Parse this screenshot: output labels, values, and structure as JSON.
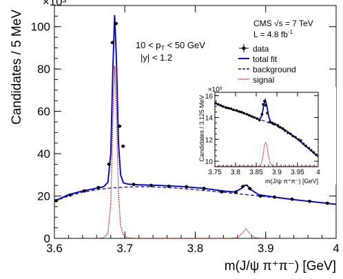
{
  "chart_data": [
    {
      "type": "scatter",
      "xlabel": "m(J/ψ π⁺π⁻) [GeV]",
      "ylabel": "Candidates / 5 MeV",
      "xlim": [
        3.6,
        4.0
      ],
      "ylim": [
        0,
        110
      ],
      "y_multiplier": "×10³",
      "xticks": [
        3.6,
        3.7,
        3.8,
        3.9,
        4.0
      ],
      "xtick_labels": [
        "3.6",
        "3.7",
        "3.8",
        "3.9",
        "4"
      ],
      "yticks": [
        0,
        20,
        40,
        60,
        80,
        100
      ],
      "yticks_labels": [
        "0",
        "20",
        "40",
        "60",
        "80",
        "100"
      ],
      "annotations": {
        "pt_cut": "10 < p",
        "pt_sub": "T",
        "pt_rest": " < 50 GeV",
        "y_cut": "|y| < 1.2",
        "experiment": "CMS  √s = 7 TeV",
        "lumi": "L = 4.8 fb",
        "lumi_sup": "-1"
      },
      "legend": {
        "position": "top-right",
        "entries": [
          {
            "label": "data",
            "style": "points",
            "color": "#000000"
          },
          {
            "label": "total fit",
            "style": "solid",
            "color": "#0000cc"
          },
          {
            "label": "background",
            "style": "dashed",
            "color": "#0000cc"
          },
          {
            "label": "signal",
            "style": "dotted",
            "color": "#cc0000"
          }
        ]
      },
      "series": [
        {
          "name": "data",
          "x": [
            3.6025,
            3.6225,
            3.6425,
            3.6625,
            3.6775,
            3.6825,
            3.6875,
            3.6925,
            3.6975,
            3.7125,
            3.7375,
            3.7625,
            3.7875,
            3.8125,
            3.8375,
            3.8575,
            3.8675,
            3.8725,
            3.8775,
            3.8925,
            3.9125,
            3.9375,
            3.9625,
            3.9875
          ],
          "y": [
            17.8,
            20.5,
            22.4,
            24.0,
            35.0,
            92.5,
            101.5,
            53.0,
            43.5,
            25.5,
            25.0,
            24.6,
            24.4,
            23.6,
            22.0,
            21.8,
            24.5,
            25.5,
            23.5,
            20.0,
            19.5,
            18.5,
            17.5,
            16.6
          ]
        },
        {
          "name": "total fit",
          "x": [
            3.6,
            3.62,
            3.64,
            3.66,
            3.67,
            3.676,
            3.68,
            3.683,
            3.6855,
            3.688,
            3.691,
            3.694,
            3.698,
            3.705,
            3.72,
            3.75,
            3.78,
            3.81,
            3.84,
            3.855,
            3.865,
            3.872,
            3.879,
            3.89,
            3.91,
            3.94,
            3.97,
            4.0
          ],
          "y": [
            17.6,
            20.6,
            22.4,
            23.7,
            24.4,
            26.5,
            40.0,
            80.0,
            105.5,
            85.0,
            45.0,
            30.0,
            26.2,
            25.6,
            25.3,
            25.0,
            24.5,
            23.7,
            22.4,
            21.9,
            23.4,
            25.6,
            23.0,
            20.6,
            19.6,
            18.3,
            17.2,
            16.1
          ]
        },
        {
          "name": "background",
          "x": [
            3.6,
            3.62,
            3.64,
            3.66,
            3.68,
            3.7,
            3.72,
            3.74,
            3.76,
            3.78,
            3.8,
            3.82,
            3.84,
            3.86,
            3.88,
            3.9,
            3.92,
            3.94,
            3.96,
            3.98,
            4.0
          ],
          "y": [
            17.6,
            20.0,
            21.8,
            23.0,
            23.8,
            24.2,
            24.4,
            24.3,
            24.0,
            23.6,
            23.0,
            22.4,
            21.8,
            21.1,
            20.4,
            19.7,
            19.0,
            18.3,
            17.6,
            16.9,
            16.1
          ]
        },
        {
          "name": "signal",
          "x": [
            3.66,
            3.67,
            3.676,
            3.68,
            3.683,
            3.6855,
            3.688,
            3.691,
            3.694,
            3.698,
            3.705,
            3.715,
            3.85,
            3.86,
            3.866,
            3.872,
            3.878,
            3.884,
            3.895
          ],
          "y": [
            0,
            0.3,
            2.5,
            16,
            56,
            81.5,
            61,
            21,
            6,
            1.5,
            0.2,
            0,
            0,
            0.4,
            2.2,
            4.5,
            2.2,
            0.4,
            0
          ]
        }
      ]
    },
    {
      "type": "scatter",
      "inset": true,
      "xlabel": "m(J/ψ π⁺π⁻) [GeV]",
      "ylabel": "Candidates / 3.125 MeV",
      "xlim": [
        3.75,
        4.0
      ],
      "ylim": [
        9.5,
        16.3
      ],
      "y_multiplier": "×10³",
      "xticks": [
        3.75,
        3.8,
        3.85,
        3.9,
        3.95,
        4.0
      ],
      "xtick_labels": [
        "3.75",
        "3.8",
        "3.85",
        "3.9",
        "3.95",
        "4"
      ],
      "yticks": [
        10,
        12,
        14,
        16
      ],
      "yticks_labels": [
        "10",
        "12",
        "14",
        "16"
      ],
      "series": [
        {
          "name": "data",
          "x": [
            3.752,
            3.758,
            3.764,
            3.77,
            3.777,
            3.783,
            3.789,
            3.795,
            3.802,
            3.808,
            3.814,
            3.82,
            3.827,
            3.833,
            3.839,
            3.845,
            3.852,
            3.858,
            3.864,
            3.867,
            3.87,
            3.873,
            3.877,
            3.883,
            3.889,
            3.895,
            3.902,
            3.908,
            3.914,
            3.92,
            3.927,
            3.933,
            3.939,
            3.945,
            3.952,
            3.958,
            3.964,
            3.97,
            3.977,
            3.983,
            3.989,
            3.995
          ],
          "y": [
            15.3,
            15.2,
            15.1,
            15.0,
            14.9,
            14.85,
            14.8,
            14.7,
            14.65,
            14.55,
            14.5,
            14.4,
            14.3,
            14.2,
            14.1,
            14.0,
            13.9,
            13.75,
            14.3,
            15.2,
            15.5,
            15.1,
            14.4,
            13.6,
            13.5,
            13.4,
            13.3,
            13.1,
            13.0,
            12.8,
            12.6,
            12.5,
            12.3,
            12.2,
            12.0,
            11.9,
            11.6,
            11.4,
            11.2,
            11.0,
            10.8,
            10.6
          ]
        },
        {
          "name": "total fit",
          "x": [
            3.75,
            3.77,
            3.79,
            3.81,
            3.83,
            3.85,
            3.858,
            3.864,
            3.868,
            3.872,
            3.876,
            3.88,
            3.886,
            3.9,
            3.92,
            3.94,
            3.96,
            3.98,
            4.0
          ],
          "y": [
            15.3,
            15.0,
            14.75,
            14.5,
            14.25,
            13.95,
            13.8,
            14.2,
            15.1,
            15.6,
            15.0,
            14.1,
            13.5,
            13.3,
            12.85,
            12.3,
            11.7,
            11.05,
            10.4
          ]
        },
        {
          "name": "background",
          "x": [
            3.75,
            3.775,
            3.8,
            3.825,
            3.85,
            3.875,
            3.9,
            3.925,
            3.95,
            3.975,
            4.0
          ],
          "y": [
            15.3,
            15.0,
            14.65,
            14.3,
            13.95,
            13.6,
            13.2,
            12.7,
            12.0,
            11.2,
            10.4
          ]
        },
        {
          "name": "signal",
          "x": [
            3.75,
            3.855,
            3.862,
            3.866,
            3.87,
            3.873,
            3.876,
            3.88,
            3.884,
            3.89,
            4.0
          ],
          "y": [
            9.55,
            9.55,
            9.7,
            10.4,
            11.5,
            11.75,
            11.4,
            10.4,
            9.8,
            9.55,
            9.55
          ]
        }
      ]
    }
  ]
}
